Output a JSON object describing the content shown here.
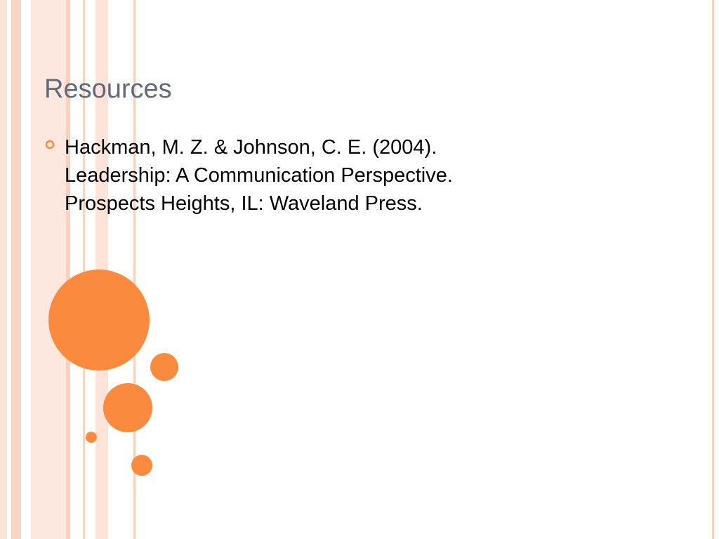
{
  "title": "Resources",
  "bullets": [
    {
      "lines": [
        "Hackman, M. Z. & Johnson, C. E. (2004).",
        "Leadership: A Communication Perspective.",
        "Prospects Heights, IL: Waveland Press."
      ]
    }
  ]
}
